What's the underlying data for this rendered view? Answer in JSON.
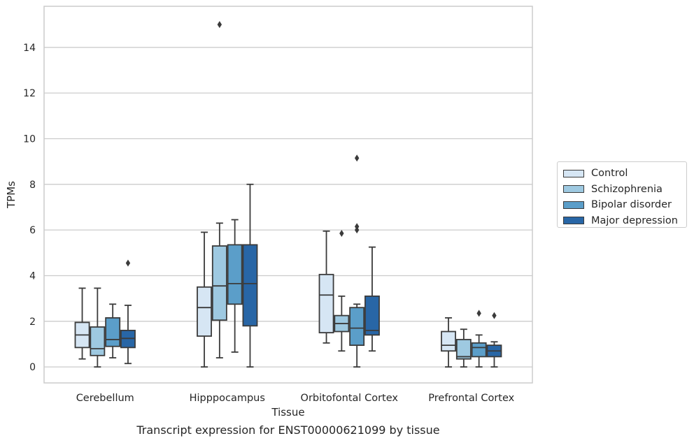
{
  "chart_data": {
    "type": "box",
    "title": "",
    "caption": "Transcript expression for ENST00000621099 by tissue",
    "xlabel": "Tissue",
    "ylabel": "TPMs",
    "ylim": [
      -0.7,
      15.8
    ],
    "yticks": [
      0,
      2,
      4,
      6,
      8,
      10,
      12,
      14
    ],
    "grid": true,
    "legend_position": "right",
    "categories": [
      "Cerebellum",
      "Hipppocampus",
      "Orbitofontal Cortex",
      "Prefrontal Cortex"
    ],
    "series": [
      {
        "name": "Control",
        "color": "#d6e6f4",
        "boxes": [
          {
            "whislo": 0.35,
            "q1": 0.85,
            "med": 1.4,
            "q3": 1.95,
            "whishi": 3.45,
            "fliers": []
          },
          {
            "whislo": 0.0,
            "q1": 1.35,
            "med": 2.6,
            "q3": 3.5,
            "whishi": 5.9,
            "fliers": []
          },
          {
            "whislo": 1.05,
            "q1": 1.5,
            "med": 3.15,
            "q3": 4.05,
            "whishi": 5.95,
            "fliers": []
          },
          {
            "whislo": 0.0,
            "q1": 0.7,
            "med": 0.95,
            "q3": 1.55,
            "whishi": 2.15,
            "fliers": []
          }
        ]
      },
      {
        "name": "Schizophrenia",
        "color": "#9ec9e1",
        "boxes": [
          {
            "whislo": 0.0,
            "q1": 0.5,
            "med": 0.8,
            "q3": 1.75,
            "whishi": 3.45,
            "fliers": []
          },
          {
            "whislo": 0.4,
            "q1": 2.05,
            "med": 3.55,
            "q3": 5.3,
            "whishi": 6.3,
            "fliers": [
              15.0
            ]
          },
          {
            "whislo": 0.7,
            "q1": 1.55,
            "med": 1.9,
            "q3": 2.25,
            "whishi": 3.1,
            "fliers": [
              5.85
            ]
          },
          {
            "whislo": 0.0,
            "q1": 0.35,
            "med": 0.45,
            "q3": 1.2,
            "whishi": 1.65,
            "fliers": []
          }
        ]
      },
      {
        "name": "Bipolar disorder",
        "color": "#5b9ec9",
        "boxes": [
          {
            "whislo": 0.4,
            "q1": 0.9,
            "med": 1.2,
            "q3": 2.15,
            "whishi": 2.75,
            "fliers": []
          },
          {
            "whislo": 0.65,
            "q1": 2.75,
            "med": 3.65,
            "q3": 5.35,
            "whishi": 6.45,
            "fliers": []
          },
          {
            "whislo": 0.0,
            "q1": 0.95,
            "med": 1.7,
            "q3": 2.6,
            "whishi": 2.75,
            "fliers": [
              6.0,
              6.15,
              9.15
            ]
          },
          {
            "whislo": 0.0,
            "q1": 0.45,
            "med": 0.85,
            "q3": 1.05,
            "whishi": 1.4,
            "fliers": [
              2.35
            ]
          }
        ]
      },
      {
        "name": "Major depression",
        "color": "#2866a6",
        "boxes": [
          {
            "whislo": 0.15,
            "q1": 0.85,
            "med": 1.25,
            "q3": 1.6,
            "whishi": 2.7,
            "fliers": [
              4.55
            ]
          },
          {
            "whislo": 0.0,
            "q1": 1.8,
            "med": 3.65,
            "q3": 5.35,
            "whishi": 8.0,
            "fliers": []
          },
          {
            "whislo": 0.7,
            "q1": 1.4,
            "med": 1.6,
            "q3": 3.1,
            "whishi": 5.25,
            "fliers": []
          },
          {
            "whislo": 0.0,
            "q1": 0.45,
            "med": 0.7,
            "q3": 0.95,
            "whishi": 1.1,
            "fliers": [
              2.25
            ]
          }
        ]
      }
    ]
  }
}
